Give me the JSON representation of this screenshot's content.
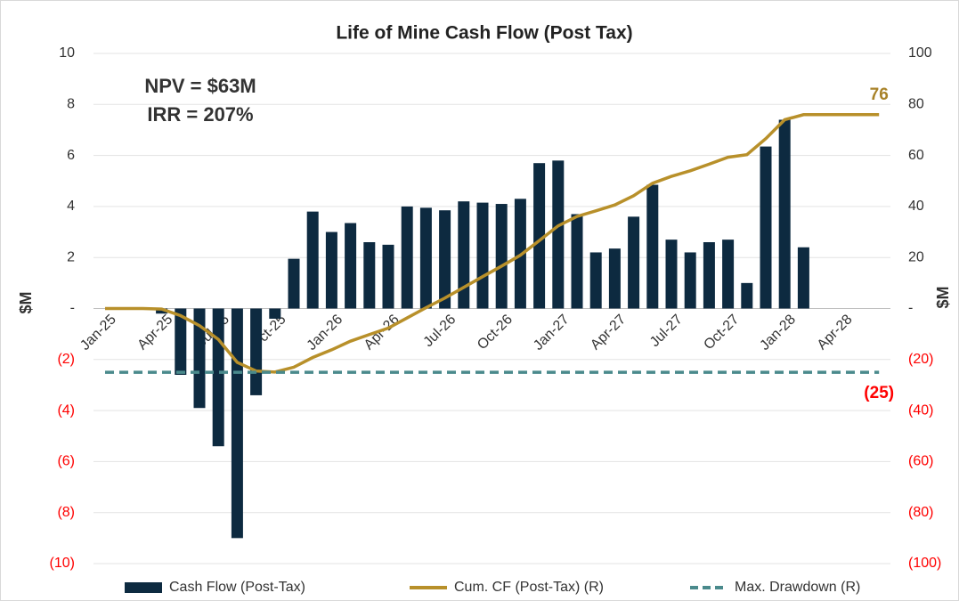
{
  "chart_data": {
    "type": "bar_line",
    "title": "Life of Mine Cash Flow (Post Tax)",
    "annotations": [
      "NPV = $63M",
      "IRR = 207%"
    ],
    "ylabel": "$M",
    "y2label": "$M",
    "categories": [
      "Jan-25",
      null,
      null,
      "Apr-25",
      null,
      null,
      "Jul-25",
      null,
      null,
      "Oct-25",
      null,
      null,
      "Jan-26",
      null,
      null,
      "Apr-26",
      null,
      null,
      "Jul-26",
      null,
      null,
      "Oct-26",
      null,
      null,
      "Jan-27",
      null,
      null,
      "Apr-27",
      null,
      null,
      "Jul-27",
      null,
      null,
      "Oct-27",
      null,
      null,
      "Jan-28",
      null,
      null,
      "Apr-28",
      null,
      null
    ],
    "series": [
      {
        "name": "Cash Flow (Post-Tax)",
        "type": "bar",
        "color": "#0d2a40",
        "values": [
          0,
          0,
          0,
          -0.2,
          -2.6,
          -3.9,
          -5.4,
          -9.0,
          -3.4,
          -0.4,
          1.95,
          3.8,
          3.0,
          3.35,
          2.6,
          2.5,
          4.0,
          3.95,
          3.85,
          4.2,
          4.15,
          4.1,
          4.3,
          5.7,
          5.8,
          3.7,
          2.2,
          2.35,
          3.6,
          4.85,
          2.7,
          2.2,
          2.6,
          2.7,
          1.0,
          6.35,
          7.4,
          2.4,
          0,
          0,
          0,
          0
        ]
      },
      {
        "name": "Cum. CF (Post-Tax) (R)",
        "type": "line",
        "axis": "y2",
        "color": "#b8902a",
        "values": [
          0,
          0,
          0,
          -0.2,
          -2.8,
          -6.7,
          -12.1,
          -21.1,
          -24.5,
          -24.9,
          -23,
          -19.2,
          -16.2,
          -12.8,
          -10.2,
          -7.7,
          -3.7,
          0.3,
          4.1,
          8.3,
          12.5,
          16.6,
          20.9,
          26.6,
          32.4,
          36.1,
          38.3,
          40.6,
          44.2,
          49.1,
          51.8,
          54,
          56.6,
          59.3,
          60.3,
          66.6,
          74,
          76,
          76,
          76,
          76,
          76
        ],
        "value_labels": [
          null,
          null,
          null,
          null,
          null,
          null,
          null,
          null,
          null,
          null,
          null,
          null,
          null,
          null,
          null,
          null,
          null,
          null,
          null,
          null,
          null,
          null,
          null,
          null,
          null,
          null,
          null,
          null,
          null,
          null,
          null,
          null,
          null,
          null,
          null,
          null,
          null,
          null,
          null,
          null,
          null,
          "76"
        ],
        "label_color": "#a88228"
      },
      {
        "name": "Max. Drawdown (R)",
        "type": "dashed",
        "axis": "y2",
        "color": "#4a8a8c",
        "values": [
          -25,
          -25,
          -25,
          -25,
          -25,
          -25,
          -25,
          -25,
          -25,
          -25,
          -25,
          -25,
          -25,
          -25,
          -25,
          -25,
          -25,
          -25,
          -25,
          -25,
          -25,
          -25,
          -25,
          -25,
          -25,
          -25,
          -25,
          -25,
          -25,
          -25,
          -25,
          -25,
          -25,
          -25,
          -25,
          -25,
          -25,
          -25,
          -25,
          -25,
          -25,
          -25
        ],
        "value_labels": [
          null,
          null,
          null,
          null,
          null,
          null,
          null,
          null,
          null,
          null,
          null,
          null,
          null,
          null,
          null,
          null,
          null,
          null,
          null,
          null,
          null,
          null,
          null,
          null,
          null,
          null,
          null,
          null,
          null,
          null,
          null,
          null,
          null,
          null,
          null,
          null,
          null,
          null,
          null,
          null,
          null,
          "(25)"
        ],
        "label_color": "#ff0000"
      }
    ],
    "ylim": [
      -10,
      10
    ],
    "yticks": [
      10,
      8,
      6,
      4,
      2,
      {
        "value": 0,
        "label": "-"
      },
      {
        "value": -2,
        "label": "(2)"
      },
      {
        "value": -4,
        "label": "(4)"
      },
      {
        "value": -6,
        "label": "(6)"
      },
      {
        "value": -8,
        "label": "(8)"
      },
      {
        "value": -10,
        "label": "(10)"
      }
    ],
    "y2lim": [
      -100,
      100
    ],
    "y2ticks": [
      100,
      80,
      60,
      40,
      20,
      {
        "value": 0,
        "label": "-"
      },
      {
        "value": -20,
        "label": "(20)"
      },
      {
        "value": -40,
        "label": "(40)"
      },
      {
        "value": -60,
        "label": "(60)"
      },
      {
        "value": -80,
        "label": "(80)"
      },
      {
        "value": -100,
        "label": "(100)"
      }
    ],
    "negative_tick_color": "#ff0000",
    "grid": true,
    "legend": "bottom"
  }
}
